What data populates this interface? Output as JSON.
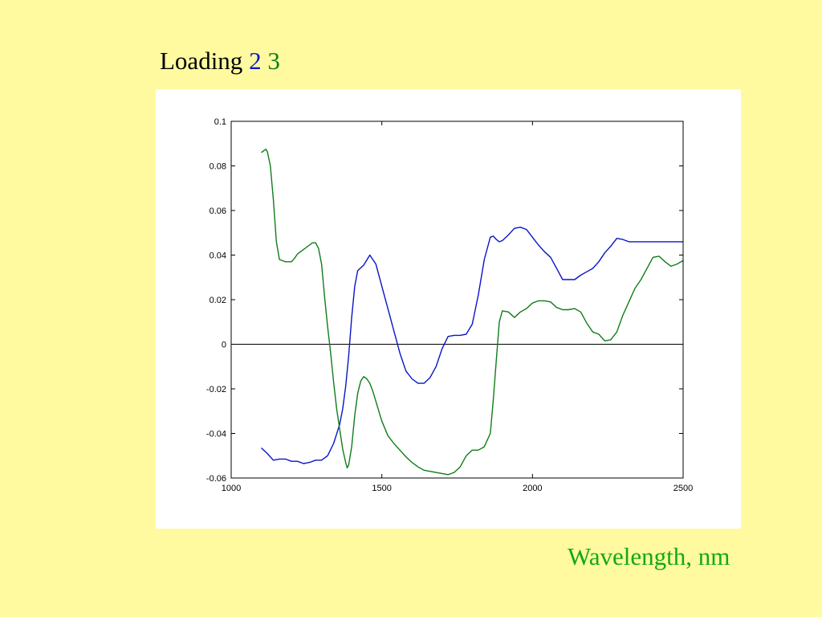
{
  "slide": {
    "title_prefix": "Loading",
    "loading_ids": [
      "2",
      "3"
    ]
  },
  "colors": {
    "background": "#fff9a0",
    "series_2": "#0a14c8",
    "series_3": "#0f7d1a",
    "xlabel": "#11aa11"
  },
  "chart_data": {
    "type": "line",
    "title": "",
    "xlabel": "Wavelength, nm",
    "ylabel": "",
    "xlim": [
      1000,
      2500
    ],
    "ylim": [
      -0.06,
      0.1
    ],
    "x_ticks": [
      "1000",
      "1500",
      "2000",
      "2500"
    ],
    "y_ticks": [
      "0.1",
      "0.08",
      "0.06",
      "0.04",
      "0.02",
      "0",
      "-0.02",
      "-0.04",
      "-0.06"
    ],
    "grid": false,
    "zero_line": true,
    "series": [
      {
        "name": "2",
        "color": "#0a14c8",
        "x": [
          1100,
          1120,
          1140,
          1160,
          1180,
          1200,
          1220,
          1240,
          1260,
          1280,
          1300,
          1320,
          1340,
          1360,
          1370,
          1380,
          1390,
          1400,
          1410,
          1420,
          1440,
          1460,
          1480,
          1500,
          1520,
          1540,
          1560,
          1580,
          1600,
          1620,
          1640,
          1660,
          1680,
          1700,
          1720,
          1740,
          1760,
          1780,
          1800,
          1820,
          1840,
          1860,
          1870,
          1880,
          1890,
          1900,
          1920,
          1940,
          1960,
          1980,
          2000,
          2020,
          2040,
          2060,
          2080,
          2100,
          2120,
          2140,
          2160,
          2180,
          2200,
          2220,
          2240,
          2260,
          2280,
          2300,
          2320,
          2340,
          2360,
          2380,
          2400,
          2420,
          2440,
          2460,
          2480,
          2500
        ],
        "values": [
          -0.0465,
          -0.049,
          -0.052,
          -0.0515,
          -0.0515,
          -0.0525,
          -0.0525,
          -0.0535,
          -0.053,
          -0.052,
          -0.052,
          -0.05,
          -0.0445,
          -0.036,
          -0.029,
          -0.019,
          -0.005,
          0.012,
          0.026,
          0.033,
          0.0355,
          0.04,
          0.036,
          0.026,
          0.016,
          0.006,
          -0.004,
          -0.012,
          -0.0155,
          -0.0175,
          -0.0175,
          -0.015,
          -0.01,
          -0.002,
          0.0035,
          0.004,
          0.004,
          0.0045,
          0.009,
          0.022,
          0.038,
          0.048,
          0.0485,
          0.047,
          0.046,
          0.0465,
          0.049,
          0.052,
          0.0525,
          0.0515,
          0.048,
          0.0445,
          0.0415,
          0.039,
          0.034,
          0.029,
          0.029,
          0.029,
          0.031,
          0.0325,
          0.034,
          0.037,
          0.041,
          0.044,
          0.0475,
          0.047,
          0.046,
          0.046,
          0.046,
          0.046,
          0.046,
          0.046,
          0.046,
          0.046,
          0.046,
          0.046
        ]
      },
      {
        "name": "3",
        "color": "#0f7d1a",
        "x": [
          1100,
          1105,
          1110,
          1115,
          1120,
          1130,
          1140,
          1150,
          1160,
          1170,
          1180,
          1190,
          1200,
          1210,
          1220,
          1240,
          1260,
          1270,
          1280,
          1290,
          1300,
          1310,
          1320,
          1330,
          1340,
          1350,
          1360,
          1370,
          1380,
          1385,
          1390,
          1400,
          1410,
          1420,
          1430,
          1440,
          1450,
          1460,
          1470,
          1480,
          1490,
          1500,
          1520,
          1540,
          1560,
          1580,
          1600,
          1620,
          1640,
          1660,
          1680,
          1700,
          1720,
          1740,
          1760,
          1780,
          1800,
          1820,
          1840,
          1860,
          1870,
          1880,
          1890,
          1900,
          1920,
          1940,
          1960,
          1980,
          2000,
          2020,
          2040,
          2060,
          2080,
          2100,
          2120,
          2140,
          2160,
          2180,
          2200,
          2220,
          2240,
          2260,
          2280,
          2300,
          2320,
          2340,
          2360,
          2380,
          2400,
          2420,
          2440,
          2460,
          2480,
          2500
        ],
        "values": [
          0.086,
          0.0865,
          0.087,
          0.0875,
          0.0865,
          0.08,
          0.065,
          0.046,
          0.038,
          0.0375,
          0.037,
          0.037,
          0.037,
          0.0385,
          0.0405,
          0.0425,
          0.0445,
          0.0455,
          0.0455,
          0.043,
          0.036,
          0.021,
          0.008,
          -0.004,
          -0.017,
          -0.029,
          -0.038,
          -0.047,
          -0.053,
          -0.0555,
          -0.054,
          -0.046,
          -0.032,
          -0.022,
          -0.0165,
          -0.0145,
          -0.0155,
          -0.0175,
          -0.021,
          -0.0255,
          -0.03,
          -0.0345,
          -0.041,
          -0.0445,
          -0.0475,
          -0.0505,
          -0.053,
          -0.055,
          -0.0565,
          -0.057,
          -0.0575,
          -0.058,
          -0.0585,
          -0.0575,
          -0.055,
          -0.05,
          -0.0475,
          -0.0475,
          -0.046,
          -0.04,
          -0.025,
          -0.007,
          0.01,
          0.015,
          0.0145,
          0.012,
          0.0145,
          0.016,
          0.0185,
          0.0195,
          0.0195,
          0.019,
          0.0165,
          0.0155,
          0.0155,
          0.016,
          0.0145,
          0.0095,
          0.0055,
          0.0045,
          0.0015,
          0.002,
          0.0055,
          0.013,
          0.019,
          0.025,
          0.029,
          0.034,
          0.039,
          0.0395,
          0.037,
          0.035,
          0.036,
          0.0375
        ]
      }
    ]
  }
}
